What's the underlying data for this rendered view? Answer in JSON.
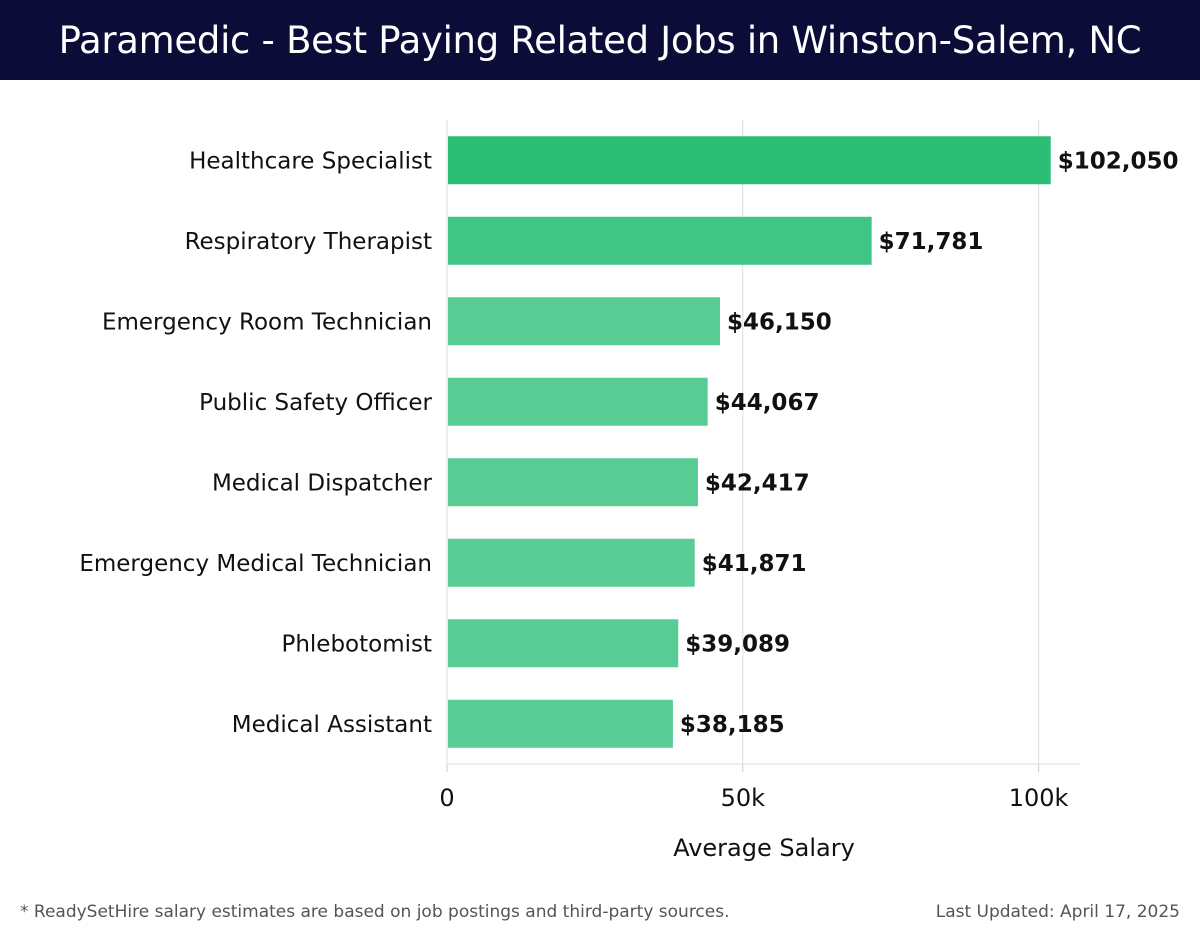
{
  "header": {
    "title": "Paramedic - Best Paying Related Jobs in Winston-Salem, NC"
  },
  "chart_data": {
    "type": "bar",
    "orientation": "horizontal",
    "categories": [
      "Healthcare Specialist",
      "Respiratory Therapist",
      "Emergency Room Technician",
      "Public Safety Officer",
      "Medical Dispatcher",
      "Emergency Medical Technician",
      "Phlebotomist",
      "Medical Assistant"
    ],
    "values": [
      102050,
      71781,
      46150,
      44067,
      42417,
      41871,
      39089,
      38185
    ],
    "value_labels": [
      "$102,050",
      "$71,781",
      "$46,150",
      "$44,067",
      "$42,417",
      "$41,871",
      "$39,089",
      "$38,185"
    ],
    "xlabel": "Average Salary",
    "xlim": [
      0,
      107000
    ],
    "xticks": [
      0,
      50000,
      100000
    ],
    "xtick_labels": [
      "0",
      "50k",
      "100k"
    ],
    "grid": "vertical",
    "colors": {
      "top": "#2bbf76",
      "second": "#3fc585",
      "rest": "#58cc94"
    }
  },
  "footer": {
    "note": "* ReadySetHire salary estimates are based on job postings and third-party sources.",
    "updated": "Last Updated: April 17, 2025"
  }
}
